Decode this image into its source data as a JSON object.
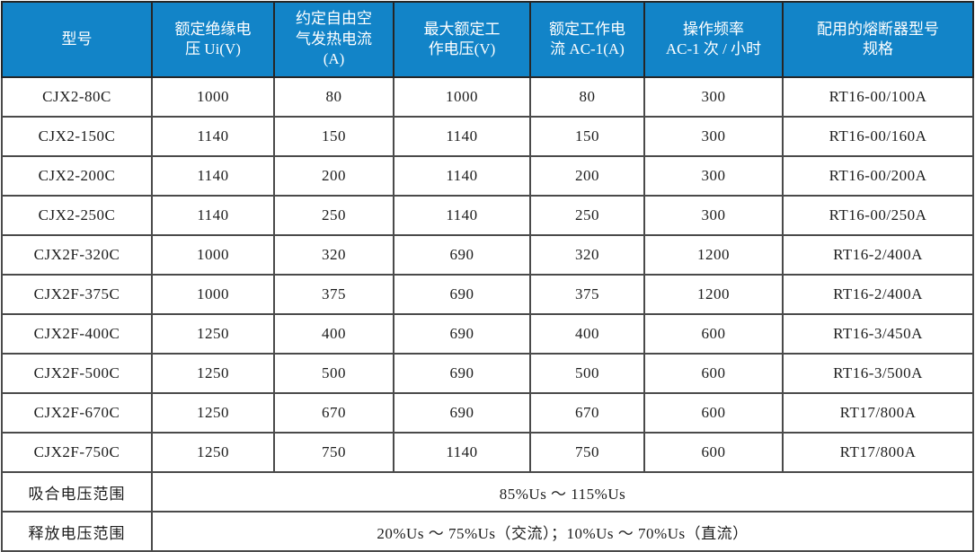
{
  "colors": {
    "header_bg": "#1284C8",
    "header_text": "#FFFFFF",
    "border": "#4A4A4A",
    "outer_border": "#262626",
    "body_text": "#1C1C1C"
  },
  "table": {
    "columns": [
      "型号",
      "额定绝缘电\n压 Ui(V)",
      "约定自由空\n气发热电流\n(A)",
      "最大额定工\n作电压(V)",
      "额定工作电\n流 AC-1(A)",
      "操作频率\nAC-1 次 / 小时",
      "配用的熔断器型号\n规格"
    ],
    "rows": [
      [
        "CJX2-80C",
        "1000",
        "80",
        "1000",
        "80",
        "300",
        "RT16-00/100A"
      ],
      [
        "CJX2-150C",
        "1140",
        "150",
        "1140",
        "150",
        "300",
        "RT16-00/160A"
      ],
      [
        "CJX2-200C",
        "1140",
        "200",
        "1140",
        "200",
        "300",
        "RT16-00/200A"
      ],
      [
        "CJX2-250C",
        "1140",
        "250",
        "1140",
        "250",
        "300",
        "RT16-00/250A"
      ],
      [
        "CJX2F-320C",
        "1000",
        "320",
        "690",
        "320",
        "1200",
        "RT16-2/400A"
      ],
      [
        "CJX2F-375C",
        "1000",
        "375",
        "690",
        "375",
        "1200",
        "RT16-2/400A"
      ],
      [
        "CJX2F-400C",
        "1250",
        "400",
        "690",
        "400",
        "600",
        "RT16-3/450A"
      ],
      [
        "CJX2F-500C",
        "1250",
        "500",
        "690",
        "500",
        "600",
        "RT16-3/500A"
      ],
      [
        "CJX2F-670C",
        "1250",
        "670",
        "690",
        "670",
        "600",
        "RT17/800A"
      ],
      [
        "CJX2F-750C",
        "1250",
        "750",
        "1140",
        "750",
        "600",
        "RT17/800A"
      ]
    ],
    "footer_rows": [
      {
        "label": "吸合电压范围",
        "value": "85%Us ～ 115%Us"
      },
      {
        "label": "释放电压范围",
        "value": "20%Us ～ 75%Us（交流）；10%Us ～ 70%Us（直流）"
      }
    ]
  }
}
